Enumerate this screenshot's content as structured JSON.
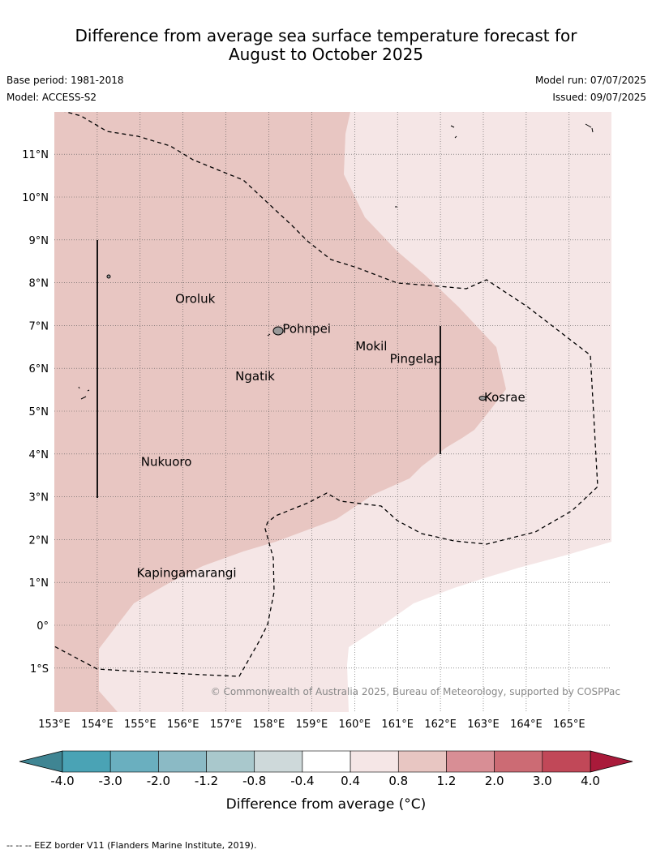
{
  "title_line1": "Difference from average sea surface temperature forecast for",
  "title_line2": "August to October 2025",
  "base_period": "Base period: 1981-2018",
  "model": "Model: ACCESS-S2",
  "model_run": "Model run: 07/07/2025",
  "issued": "Issued: 09/07/2025",
  "copyright": "© Commonwealth of Australia 2025, Bureau of Meteorology, supported by COSPPac",
  "lat_labels": [
    "11°N",
    "10°N",
    "9°N",
    "8°N",
    "7°N",
    "6°N",
    "5°N",
    "4°N",
    "3°N",
    "2°N",
    "1°N",
    "0°",
    "1°S"
  ],
  "lon_labels": [
    "153°E",
    "154°E",
    "155°E",
    "156°E",
    "157°E",
    "158°E",
    "159°E",
    "160°E",
    "161°E",
    "162°E",
    "163°E",
    "164°E",
    "165°E"
  ],
  "places": [
    {
      "name": "Oroluk",
      "lon": 155.8,
      "lat": 7.6
    },
    {
      "name": "Pohnpei",
      "lon": 158.3,
      "lat": 6.9
    },
    {
      "name": "Mokil",
      "lon": 160.0,
      "lat": 6.5
    },
    {
      "name": "Pingelap",
      "lon": 160.8,
      "lat": 6.2
    },
    {
      "name": "Ngatik",
      "lon": 157.2,
      "lat": 5.8
    },
    {
      "name": "Kosrae",
      "lon": 163.0,
      "lat": 5.3
    },
    {
      "name": "Nukuoro",
      "lon": 155.0,
      "lat": 3.8
    },
    {
      "name": "Kapingamarangi",
      "lon": 154.9,
      "lat": 1.2
    }
  ],
  "colorbar": {
    "boundaries": [
      "-4.0",
      "-3.0",
      "-2.0",
      "-1.2",
      "-0.8",
      "-0.4",
      "0.4",
      "0.8",
      "1.2",
      "2.0",
      "3.0",
      "4.0"
    ],
    "colors": [
      "#4aa3b5",
      "#6aafbf",
      "#8bbac5",
      "#a9c8cc",
      "#ced9da",
      "#ffffff",
      "#f5e6e6",
      "#e8c6c2",
      "#d88e95",
      "#cc6b74",
      "#c14858"
    ],
    "under_color": "#3f8593",
    "over_color": "#a91a3a",
    "label": "Difference from average (°C)"
  },
  "colors": {
    "band_0p4_0p8": "#f5e6e6",
    "band_0p8_1p2": "#e8c6c2",
    "eez": "#000000"
  },
  "footnote": "--  --  -- EEZ border V11 (Flanders Marine Institute, 2019)."
}
